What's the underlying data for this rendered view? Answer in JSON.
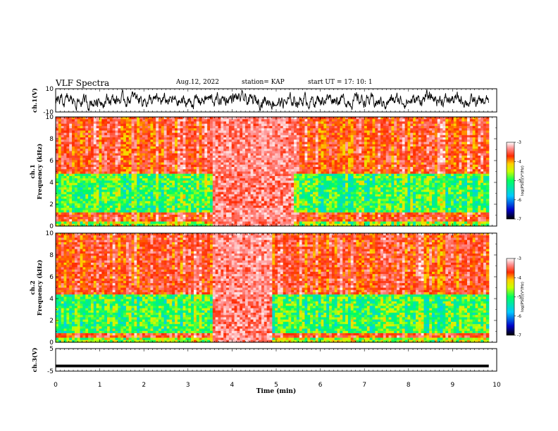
{
  "header": {
    "title": "VLF Spectra",
    "date": "Aug.12, 2022",
    "station": "station= KAP",
    "start": "start  UT  =   17: 10: 1"
  },
  "chart_data": [
    {
      "type": "line",
      "name": "ch1-waveform",
      "ylabel": "ch.1(V)",
      "ylim": [
        -10,
        10
      ],
      "yticks": [
        "10",
        "-10"
      ],
      "xlim": [
        0,
        10
      ],
      "data_end_min": 9.82,
      "baseline": 0,
      "amplitude": 4.5,
      "color": "#000000"
    },
    {
      "type": "heatmap",
      "name": "ch1-spectrogram",
      "ylabel": "ch.1\nFrequency  (kHz)",
      "ylim": [
        0,
        10
      ],
      "yticks": [
        "0",
        "2",
        "4",
        "6",
        "8",
        "10"
      ],
      "xlim": [
        0,
        10
      ],
      "data_end_min": 9.82,
      "bright_segment_min": [
        3.55,
        5.4
      ],
      "green_band_khz": [
        1.2,
        4.8
      ],
      "colorbar": {
        "range": [
          -7,
          -3
        ],
        "ticks": [
          "-3",
          "-4",
          "-5",
          "-6",
          "-7"
        ],
        "label": "log(PSD)(V²/Hz)"
      }
    },
    {
      "type": "heatmap",
      "name": "ch2-spectrogram",
      "ylabel": "ch.2\nFrequency  (kHz)",
      "ylim": [
        0,
        10
      ],
      "yticks": [
        "0",
        "2",
        "4",
        "6",
        "8",
        "10"
      ],
      "xlim": [
        0,
        10
      ],
      "data_end_min": 9.82,
      "bright_segment_min": [
        3.55,
        4.9
      ],
      "green_band_khz": [
        0.8,
        4.4
      ],
      "colorbar": {
        "range": [
          -7,
          -3
        ],
        "ticks": [
          "-3",
          "-4",
          "-5",
          "-6",
          "-7"
        ],
        "label": "log(PSD)(V²/Hz)"
      }
    },
    {
      "type": "line",
      "name": "ch3-waveform",
      "ylabel": "ch.3(V)",
      "ylim": [
        -5,
        5
      ],
      "yticks": [
        "5",
        "-5"
      ],
      "xlim": [
        0,
        10
      ],
      "data_end_min": 9.82,
      "baseline": -2.7,
      "band_halfwidth": 0.6,
      "color": "#000000"
    }
  ],
  "xaxis": {
    "label": "Time  (min)",
    "ticks": [
      "0",
      "1",
      "2",
      "3",
      "4",
      "5",
      "6",
      "7",
      "8",
      "9",
      "10"
    ]
  }
}
